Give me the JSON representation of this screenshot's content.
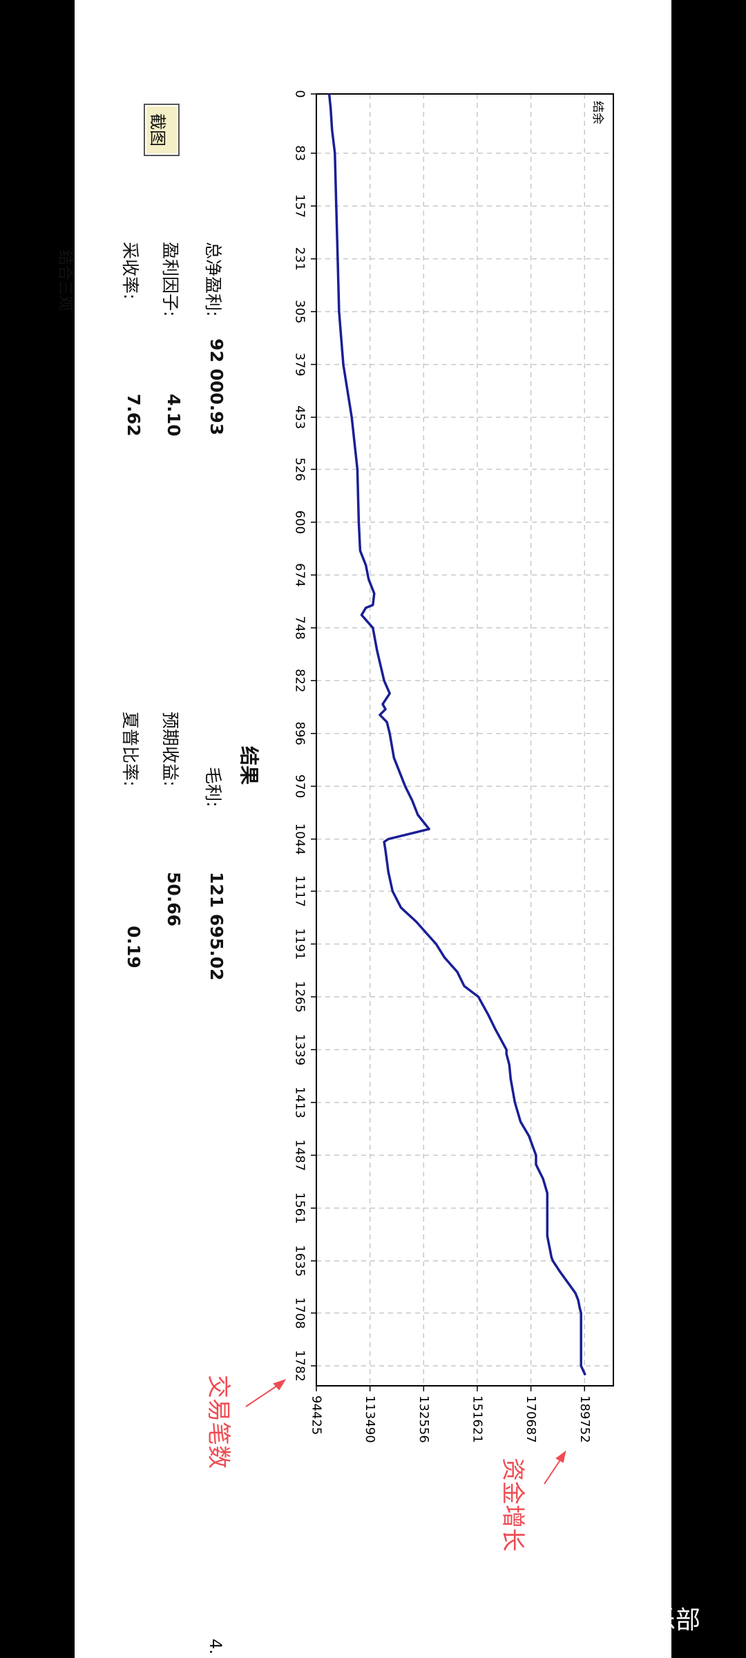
{
  "chart_data": {
    "type": "line",
    "legend": {
      "label": "结余",
      "placement": "top-right"
    },
    "xaxis": {
      "label": "交易笔数",
      "ticks": [
        0,
        83,
        157,
        231,
        305,
        379,
        453,
        526,
        600,
        674,
        748,
        822,
        896,
        970,
        1044,
        1117,
        1191,
        1265,
        1339,
        1413,
        1487,
        1561,
        1635,
        1708,
        1782
      ]
    },
    "yaxis": {
      "label": "资金增长",
      "ticks": [
        94425,
        113490,
        132556,
        151621,
        170687,
        189752
      ],
      "ylim": [
        94425,
        200000
      ]
    },
    "grid": true,
    "series": [
      {
        "name": "结余",
        "color": "#1a1f96",
        "x": [
          0,
          20,
          50,
          83,
          157,
          231,
          305,
          379,
          453,
          526,
          600,
          640,
          660,
          680,
          700,
          716,
          720,
          730,
          748,
          780,
          822,
          840,
          855,
          862,
          870,
          880,
          896,
          930,
          970,
          990,
          1010,
          1030,
          1044,
          1048,
          1060,
          1090,
          1117,
          1140,
          1160,
          1180,
          1191,
          1210,
          1230,
          1250,
          1265,
          1290,
          1310,
          1339,
          1345,
          1360,
          1380,
          1413,
          1440,
          1460,
          1487,
          1500,
          1520,
          1540,
          1561,
          1600,
          1630,
          1635,
          1650,
          1680,
          1690,
          1700,
          1708,
          1740,
          1770,
          1782,
          1795
        ],
        "y": [
          99000,
          99500,
          100000,
          101000,
          101500,
          102000,
          102500,
          104000,
          107000,
          109000,
          109500,
          110000,
          112000,
          113000,
          115000,
          114500,
          112000,
          110500,
          114500,
          116000,
          118500,
          120500,
          118000,
          119000,
          117000,
          119500,
          120500,
          122000,
          126000,
          128500,
          130500,
          134500,
          120000,
          118500,
          119000,
          120000,
          121500,
          124500,
          130000,
          134500,
          137000,
          140000,
          144500,
          147000,
          152000,
          155500,
          158000,
          162000,
          162000,
          163000,
          163500,
          165000,
          167000,
          170000,
          172500,
          172500,
          175000,
          176500,
          176500,
          176500,
          178000,
          178500,
          181000,
          186500,
          187500,
          188000,
          188500,
          188500,
          188500,
          188500,
          190000
        ]
      }
    ]
  },
  "stats": [
    {
      "label": "总净盈利:",
      "value": "92 000.93"
    },
    {
      "label": "盈利因子:",
      "value": "4.10"
    },
    {
      "label": "采收率:",
      "value": "7.62"
    },
    {
      "label": "毛利:",
      "value": "121 695.02"
    },
    {
      "label": "预期收益:",
      "value": "50.66"
    },
    {
      "label": "夏普比率:",
      "value": "0.19"
    }
  ],
  "section_title": "结果",
  "screenshot_button": "截图",
  "annotations": {
    "trades": "交易笔数",
    "growth": "资金增长"
  },
  "watermark": "@智能交易俱乐部",
  "edge_text": {
    "bottom": "4.",
    "left": "结合三观"
  },
  "colors": {
    "line": "#1a1f96",
    "annotation": "#ef4b52",
    "grid": "#c8c8c8"
  }
}
